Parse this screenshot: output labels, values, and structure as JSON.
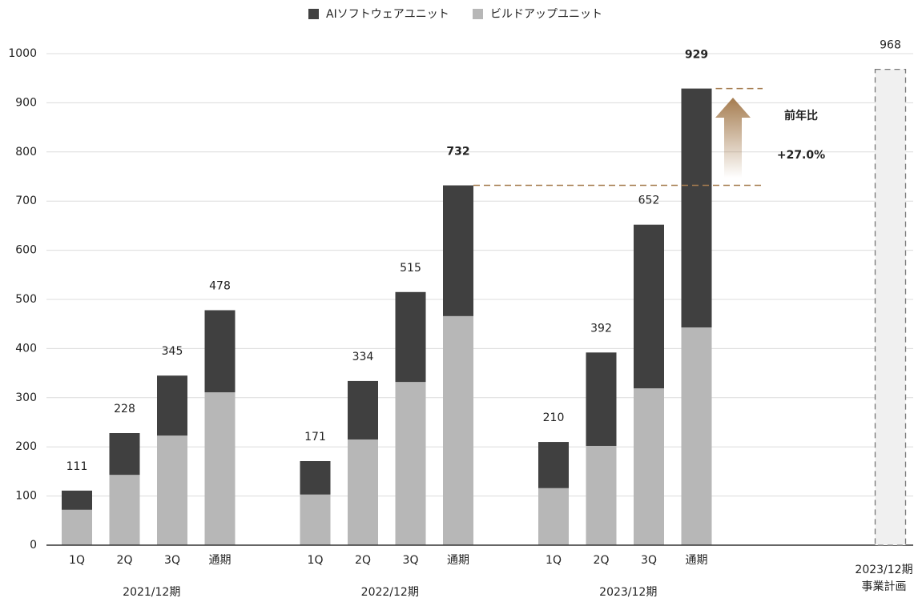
{
  "chart_data": {
    "type": "stacked_bar",
    "categories": [
      "1Q",
      "2Q",
      "3Q",
      "通期",
      null,
      "1Q",
      "2Q",
      "3Q",
      "通期",
      null,
      "1Q",
      "2Q",
      "3Q",
      "通期",
      null,
      null,
      null,
      null
    ],
    "groups": [
      "2021/12期",
      "2022/12期",
      "2023/12期"
    ],
    "plan_label": [
      "2023/12期",
      "事業計画"
    ],
    "series": [
      {
        "name": "ビルドアップユニット",
        "color": "#b7b7b7",
        "values": [
          72,
          143,
          223,
          311,
          null,
          103,
          215,
          332,
          466,
          null,
          116,
          202,
          319,
          443,
          null,
          null,
          null,
          null
        ]
      },
      {
        "name": "AIソフトウェアユニット",
        "color": "#404040",
        "values": [
          39,
          85,
          122,
          167,
          null,
          68,
          119,
          183,
          266,
          null,
          94,
          190,
          333,
          486,
          null,
          null,
          null,
          null
        ]
      }
    ],
    "totals": [
      111,
      228,
      345,
      478,
      null,
      171,
      334,
      515,
      732,
      null,
      210,
      392,
      652,
      929,
      null,
      null,
      null,
      null
    ],
    "plan": {
      "value": 968,
      "color": "#f0f0f0"
    },
    "annotation": {
      "title": "前年比",
      "text": "+27.0%",
      "color": "#a57c4f"
    },
    "ylim": [
      0,
      1000
    ],
    "yticks": [
      0,
      100,
      200,
      300,
      400,
      500,
      600,
      700,
      800,
      900,
      1000
    ],
    "grid": true
  }
}
